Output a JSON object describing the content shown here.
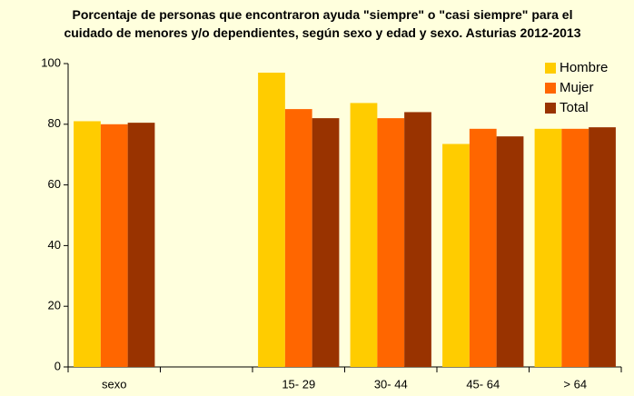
{
  "chart_data": {
    "type": "bar",
    "title": "Porcentaje de personas que encontraron  ayuda \"siempre\" o \"casi siempre\" para el cuidado de menores y/o dependientes,  según sexo y edad y sexo. Asturias 2012-2013",
    "categories": [
      "sexo",
      null,
      "15- 29",
      "30- 44",
      "45- 64",
      "> 64"
    ],
    "series": [
      {
        "name": "Hombre",
        "color": "#FFCC00",
        "values": [
          81,
          null,
          97,
          87,
          73.5,
          78.5
        ]
      },
      {
        "name": "Mujer",
        "color": "#FF6600",
        "values": [
          80,
          null,
          85,
          82,
          78.5,
          78.5
        ]
      },
      {
        "name": "Total",
        "color": "#993300",
        "values": [
          80.5,
          null,
          82,
          84,
          76,
          79
        ]
      }
    ],
    "ylim": [
      0,
      100
    ],
    "yticks": [
      0,
      20,
      40,
      60,
      80,
      100
    ],
    "grid": false,
    "legend": "top-right"
  }
}
